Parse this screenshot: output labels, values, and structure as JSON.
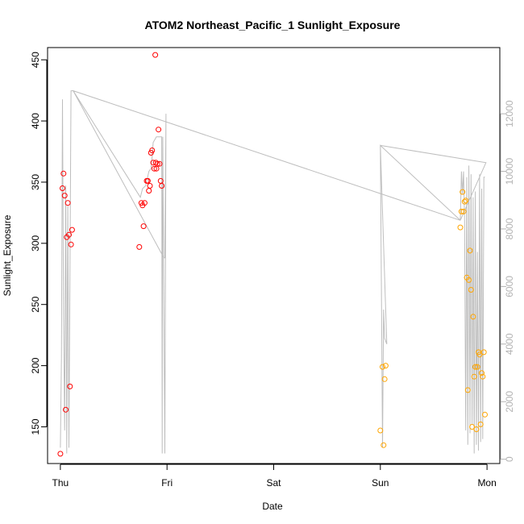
{
  "chart_data": {
    "type": "scatter",
    "title": "ATOM2 Northeast_Pacific_1 Sunlight_Exposure",
    "xlabel": "Date",
    "ylabel": "Sunlight_Exposure",
    "x_ticks": [
      "Thu",
      "Fri",
      "Sat",
      "Sun",
      "Mon"
    ],
    "xlim": [
      -0.12,
      4.12
    ],
    "ylim": [
      120,
      460
    ],
    "y_ticks": [
      150,
      200,
      250,
      300,
      350,
      400,
      450
    ],
    "y2lim": [
      -150,
      14300
    ],
    "y2_ticks": [
      0,
      2000,
      4000,
      6000,
      8000,
      10000,
      12000
    ],
    "colors": {
      "series_a": "#ff0000",
      "series_b": "#ffa500",
      "line": "#bebebe",
      "right_axis": "#b3b3b3"
    },
    "series": [
      {
        "color": "red",
        "points": [
          [
            0.0,
            128
          ],
          [
            0.02,
            345
          ],
          [
            0.03,
            357
          ],
          [
            0.04,
            339
          ],
          [
            0.05,
            164
          ],
          [
            0.06,
            305
          ],
          [
            0.07,
            333
          ],
          [
            0.08,
            307
          ],
          [
            0.09,
            183
          ],
          [
            0.1,
            299
          ],
          [
            0.11,
            311
          ],
          [
            0.74,
            297
          ],
          [
            0.76,
            333
          ],
          [
            0.77,
            331
          ],
          [
            0.78,
            314
          ],
          [
            0.79,
            333
          ],
          [
            0.81,
            351
          ],
          [
            0.82,
            351
          ],
          [
            0.83,
            343
          ],
          [
            0.84,
            347
          ],
          [
            0.85,
            374
          ],
          [
            0.86,
            376
          ],
          [
            0.87,
            366
          ],
          [
            0.88,
            361
          ],
          [
            0.89,
            454
          ],
          [
            0.895,
            366
          ],
          [
            0.9,
            361
          ],
          [
            0.91,
            365
          ],
          [
            0.92,
            393
          ],
          [
            0.93,
            365
          ],
          [
            0.94,
            351
          ],
          [
            0.95,
            347
          ]
        ]
      },
      {
        "color": "orange",
        "points": [
          [
            3.0,
            147
          ],
          [
            3.02,
            199
          ],
          [
            3.03,
            135
          ],
          [
            3.04,
            189
          ],
          [
            3.05,
            200
          ],
          [
            3.75,
            313
          ],
          [
            3.76,
            326
          ],
          [
            3.77,
            342
          ],
          [
            3.78,
            326
          ],
          [
            3.79,
            334
          ],
          [
            3.8,
            335
          ],
          [
            3.81,
            272
          ],
          [
            3.82,
            180
          ],
          [
            3.83,
            270
          ],
          [
            3.84,
            294
          ],
          [
            3.85,
            262
          ],
          [
            3.86,
            150
          ],
          [
            3.87,
            240
          ],
          [
            3.88,
            191
          ],
          [
            3.89,
            199
          ],
          [
            3.9,
            148
          ],
          [
            3.91,
            199
          ],
          [
            3.92,
            211
          ],
          [
            3.93,
            209
          ],
          [
            3.94,
            152
          ],
          [
            3.95,
            194
          ],
          [
            3.96,
            191
          ],
          [
            3.97,
            211
          ],
          [
            3.98,
            160
          ]
        ]
      }
    ],
    "line_series_right_axis": [
      [
        0.0,
        400
      ],
      [
        0.01,
        3500
      ],
      [
        0.02,
        12500
      ],
      [
        0.03,
        5000
      ],
      [
        0.04,
        1000
      ],
      [
        0.05,
        9500
      ],
      [
        0.06,
        200
      ],
      [
        0.07,
        8800
      ],
      [
        0.08,
        400
      ],
      [
        0.1,
        12800
      ],
      [
        0.12,
        12800
      ],
      [
        0.97,
        7000
      ],
      [
        0.98,
        7000
      ],
      [
        0.99,
        12000
      ],
      [
        0.98,
        200
      ],
      [
        0.96,
        11200
      ],
      [
        0.955,
        200
      ],
      [
        0.95,
        11200
      ],
      [
        0.9,
        11200
      ],
      [
        0.87,
        11000
      ],
      [
        0.86,
        10500
      ],
      [
        0.85,
        10100
      ],
      [
        0.83,
        10000
      ],
      [
        0.8,
        9500
      ],
      [
        0.77,
        9400
      ],
      [
        0.75,
        9100
      ],
      [
        0.12,
        12800
      ],
      [
        3.75,
        8300
      ],
      [
        3.0,
        10900
      ],
      [
        3.01,
        6000
      ],
      [
        3.02,
        400
      ],
      [
        3.03,
        5200
      ],
      [
        3.04,
        4200
      ],
      [
        3.06,
        4000
      ],
      [
        3.0,
        10900
      ],
      [
        3.99,
        10300
      ],
      [
        3.75,
        8300
      ],
      [
        3.76,
        10000
      ],
      [
        3.77,
        9200
      ],
      [
        3.78,
        10000
      ],
      [
        3.79,
        8300
      ],
      [
        3.8,
        1000
      ],
      [
        3.81,
        9800
      ],
      [
        3.82,
        500
      ],
      [
        3.83,
        10200
      ],
      [
        3.84,
        900
      ],
      [
        3.85,
        9900
      ],
      [
        3.86,
        1200
      ],
      [
        3.87,
        9100
      ],
      [
        3.88,
        200
      ],
      [
        3.89,
        9300
      ],
      [
        3.9,
        500
      ],
      [
        3.91,
        7200
      ],
      [
        3.92,
        300
      ],
      [
        3.93,
        9900
      ],
      [
        3.94,
        600
      ],
      [
        3.95,
        9400
      ],
      [
        3.96,
        700
      ],
      [
        3.97,
        9800
      ],
      [
        3.98,
        9800
      ]
    ],
    "grid": false,
    "legend": "none"
  }
}
